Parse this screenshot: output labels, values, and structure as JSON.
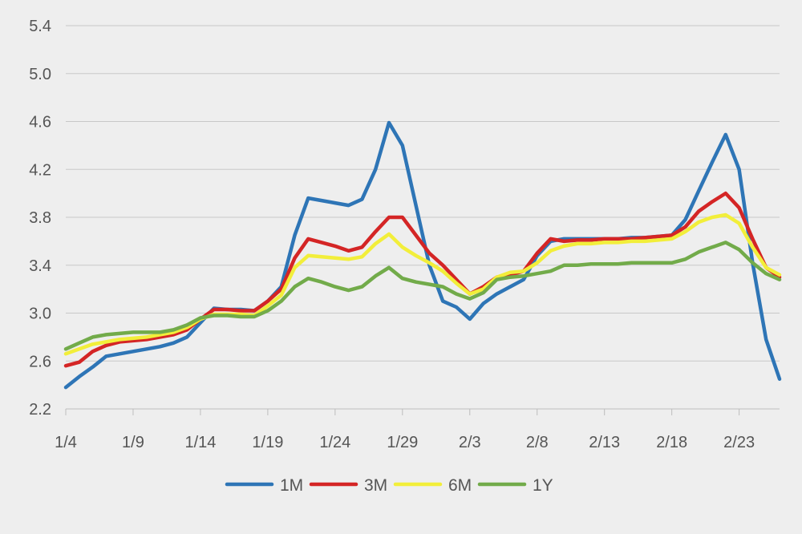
{
  "chart_data": {
    "type": "line",
    "title": "",
    "xlabel": "",
    "ylabel": "",
    "ylim": [
      2.2,
      5.4
    ],
    "yticks": [
      2.2,
      2.6,
      3.0,
      3.4,
      3.8,
      4.2,
      4.6,
      5.0,
      5.4
    ],
    "ytick_labels": [
      "2.2",
      "2.6",
      "3.0",
      "3.4",
      "3.8",
      "4.2",
      "4.6",
      "5.0",
      "5.4"
    ],
    "xtick_labels": [
      "1/4",
      "1/9",
      "1/14",
      "1/19",
      "1/24",
      "1/29",
      "2/3",
      "2/8",
      "2/13",
      "2/18",
      "2/23"
    ],
    "xtick_positions": [
      0,
      5,
      10,
      15,
      20,
      25,
      30,
      35,
      40,
      45,
      50
    ],
    "x": [
      "1/4",
      "1/5",
      "1/6",
      "1/7",
      "1/8",
      "1/9",
      "1/10",
      "1/11",
      "1/12",
      "1/13",
      "1/14",
      "1/15",
      "1/16",
      "1/17",
      "1/18",
      "1/19",
      "1/20",
      "1/21",
      "1/22",
      "1/23",
      "1/24",
      "1/25",
      "1/26",
      "1/27",
      "1/28",
      "1/29",
      "1/30",
      "1/31",
      "2/1",
      "2/2",
      "2/3",
      "2/4",
      "2/5",
      "2/6",
      "2/7",
      "2/8",
      "2/9",
      "2/10",
      "2/11",
      "2/12",
      "2/13",
      "2/14",
      "2/15",
      "2/16",
      "2/17",
      "2/18",
      "2/19",
      "2/20",
      "2/21",
      "2/22",
      "2/23",
      "2/24",
      "2/25",
      "2/26"
    ],
    "grid": true,
    "legend_position": "bottom",
    "series": [
      {
        "name": "1M",
        "color": "#2e75b6",
        "values": [
          2.38,
          2.47,
          2.55,
          2.64,
          2.66,
          2.68,
          2.7,
          2.72,
          2.75,
          2.8,
          2.92,
          3.04,
          3.03,
          3.03,
          3.02,
          3.1,
          3.22,
          3.65,
          3.96,
          3.94,
          3.92,
          3.9,
          3.95,
          4.2,
          4.59,
          4.4,
          3.9,
          3.4,
          3.1,
          3.05,
          2.95,
          3.08,
          3.16,
          3.22,
          3.28,
          3.48,
          3.6,
          3.62,
          3.62,
          3.62,
          3.62,
          3.62,
          3.63,
          3.63,
          3.64,
          3.65,
          3.78,
          4.02,
          4.26,
          4.49,
          4.2,
          3.42,
          2.78,
          2.45
        ]
      },
      {
        "name": "3M",
        "color": "#d42525",
        "values": [
          2.56,
          2.59,
          2.68,
          2.73,
          2.76,
          2.77,
          2.78,
          2.8,
          2.82,
          2.86,
          2.95,
          3.03,
          3.03,
          3.02,
          3.02,
          3.1,
          3.2,
          3.46,
          3.62,
          3.59,
          3.56,
          3.52,
          3.55,
          3.68,
          3.8,
          3.8,
          3.65,
          3.5,
          3.4,
          3.28,
          3.16,
          3.22,
          3.3,
          3.32,
          3.35,
          3.5,
          3.62,
          3.6,
          3.61,
          3.61,
          3.62,
          3.62,
          3.62,
          3.63,
          3.64,
          3.65,
          3.72,
          3.85,
          3.93,
          4.0,
          3.88,
          3.62,
          3.38,
          3.3
        ]
      },
      {
        "name": "6M",
        "color": "#f2ee3a",
        "values": [
          2.66,
          2.7,
          2.74,
          2.76,
          2.78,
          2.79,
          2.8,
          2.82,
          2.84,
          2.88,
          2.95,
          2.99,
          2.99,
          2.99,
          2.98,
          3.06,
          3.15,
          3.38,
          3.48,
          3.47,
          3.46,
          3.45,
          3.47,
          3.58,
          3.66,
          3.55,
          3.48,
          3.42,
          3.35,
          3.25,
          3.16,
          3.2,
          3.3,
          3.34,
          3.35,
          3.42,
          3.52,
          3.56,
          3.58,
          3.58,
          3.59,
          3.59,
          3.6,
          3.6,
          3.61,
          3.62,
          3.68,
          3.76,
          3.8,
          3.82,
          3.75,
          3.55,
          3.38,
          3.32
        ]
      },
      {
        "name": "1Y",
        "color": "#72ab4a",
        "values": [
          2.7,
          2.75,
          2.8,
          2.82,
          2.83,
          2.84,
          2.84,
          2.84,
          2.86,
          2.9,
          2.96,
          2.98,
          2.98,
          2.97,
          2.97,
          3.02,
          3.1,
          3.22,
          3.29,
          3.26,
          3.22,
          3.19,
          3.22,
          3.31,
          3.38,
          3.29,
          3.26,
          3.24,
          3.22,
          3.16,
          3.12,
          3.17,
          3.28,
          3.3,
          3.31,
          3.33,
          3.35,
          3.4,
          3.4,
          3.41,
          3.41,
          3.41,
          3.42,
          3.42,
          3.42,
          3.42,
          3.45,
          3.51,
          3.55,
          3.59,
          3.53,
          3.42,
          3.33,
          3.28
        ]
      }
    ]
  }
}
